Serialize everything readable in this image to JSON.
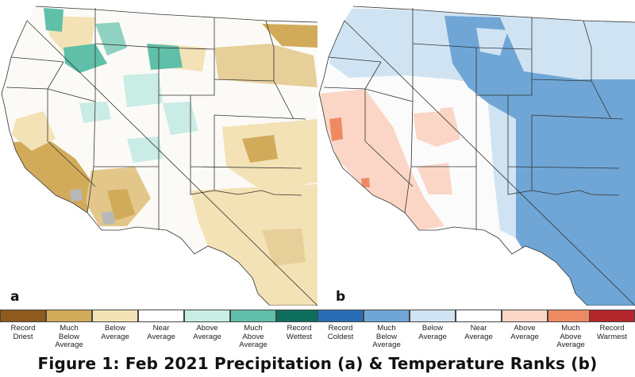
{
  "panels": [
    {
      "letter": "a"
    },
    {
      "letter": "b"
    }
  ],
  "legend": {
    "items": [
      {
        "label": "Record\nDriest",
        "color": "#8e5a1d"
      },
      {
        "label": "Much\nBelow\nAverage",
        "color": "#d2ab5a"
      },
      {
        "label": "Below\nAverage",
        "color": "#f3e2b6"
      },
      {
        "label": "Near\nAverage",
        "color": "#ffffff"
      },
      {
        "label": "Above\nAverage",
        "color": "#c9ece5"
      },
      {
        "label": "Much\nAbove\nAverage",
        "color": "#5fbfa8"
      },
      {
        "label": "Record\nWettest",
        "color": "#0e6e5c"
      },
      {
        "label": "Record\nColdest",
        "color": "#2a6db5"
      },
      {
        "label": "Much\nBelow\nAverage",
        "color": "#6fa6d6"
      },
      {
        "label": "Below\nAverage",
        "color": "#cfe3f2"
      },
      {
        "label": "Near\nAverage",
        "color": "#ffffff"
      },
      {
        "label": "Above\nAverage",
        "color": "#fbd6c6"
      },
      {
        "label": "Much\nAbove\nAverage",
        "color": "#ee8a62"
      },
      {
        "label": "Record\nWarmest",
        "color": "#b3262c"
      }
    ]
  },
  "caption": "Figure 1: Feb 2021 Precipitation (a) & Temperature Ranks (b)"
}
